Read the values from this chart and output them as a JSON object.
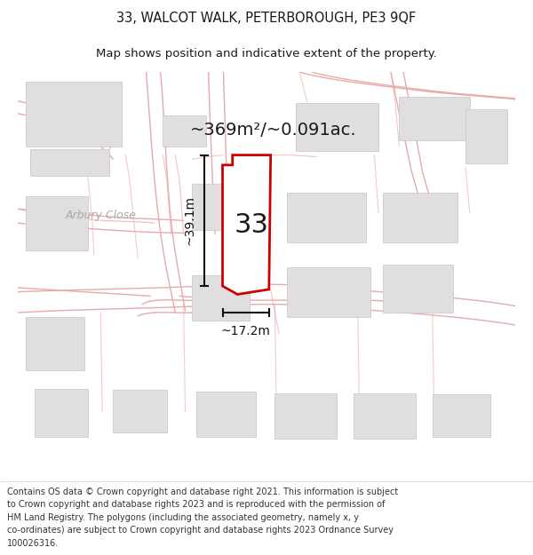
{
  "title": "33, WALCOT WALK, PETERBOROUGH, PE3 9QF",
  "subtitle": "Map shows position and indicative extent of the property.",
  "area_label": "~369m²/~0.091ac.",
  "number_label": "33",
  "dim_height": "~39.1m",
  "dim_width": "~17.2m",
  "street_label": "Arbury Close",
  "footer_lines": [
    "Contains OS data © Crown copyright and database right 2021. This information is subject to Crown copyright and database rights 2023 and is reproduced with the permission of",
    "HM Land Registry. The polygons (including the associated geometry, namely x, y co-ordinates) are subject to Crown copyright and database rights 2023 Ordnance Survey",
    "100026316."
  ],
  "map_bg": "#ffffff",
  "road_color": "#e8aaaa",
  "building_fill": "#e0dede",
  "building_edge": "#cccccc",
  "prop_fill": "#ffffff",
  "prop_edge": "#cc0000",
  "prop_lw": 2.0,
  "dim_color": "#111111",
  "street_color": "#aaaaaa",
  "title_fs": 10.5,
  "subtitle_fs": 9.5,
  "area_fs": 14,
  "num_fs": 22,
  "dim_fs": 10,
  "street_fs": 9,
  "footer_fs": 7.0
}
